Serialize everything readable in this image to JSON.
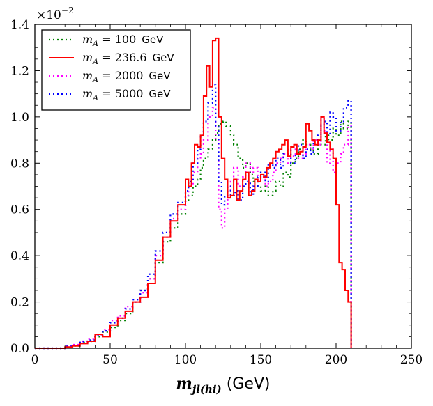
{
  "chart_data": {
    "type": "histogram-step",
    "title": "",
    "xlabel": "m_jl(hi) (GeV)",
    "xlabel_parts": {
      "math": "m",
      "sub": "jl(hi)",
      "unit": " (GeV)"
    },
    "ylabel": "",
    "y_multiplier": "×10",
    "y_multiplier_exp": "−2",
    "xlim": [
      0,
      250
    ],
    "ylim": [
      0.0,
      1.4
    ],
    "xticks": [
      0,
      50,
      100,
      150,
      200,
      250
    ],
    "xtick_labels": [
      "0",
      "50",
      "100",
      "150",
      "200",
      "250"
    ],
    "yticks": [
      0.0,
      0.2,
      0.4,
      0.6,
      0.8,
      1.0,
      1.2,
      1.4
    ],
    "ytick_labels": [
      "0.0",
      "0.2",
      "0.4",
      "0.6",
      "0.8",
      "1.0",
      "1.2",
      "1.4"
    ],
    "legend_position": "top-left",
    "series": [
      {
        "name": "m_A = 100 GeV",
        "legend_math": "m",
        "legend_sub": "A",
        "legend_value": " = 100",
        "legend_unit": "GeV",
        "color": "#008000",
        "style": "dotted",
        "x": [
          20,
          25,
          30,
          35,
          40,
          45,
          50,
          55,
          60,
          65,
          70,
          75,
          80,
          85,
          90,
          95,
          100,
          102,
          105,
          108,
          110,
          112,
          115,
          118,
          120,
          122,
          125,
          127,
          130,
          132,
          135,
          138,
          140,
          143,
          145,
          148,
          150,
          153,
          155,
          158,
          160,
          163,
          165,
          168,
          170,
          173,
          175,
          178,
          180,
          183,
          185,
          188,
          190,
          193,
          195,
          198,
          200,
          203,
          205,
          208,
          210
        ],
        "values": [
          0.005,
          0.01,
          0.025,
          0.03,
          0.05,
          0.07,
          0.09,
          0.12,
          0.15,
          0.2,
          0.25,
          0.3,
          0.37,
          0.46,
          0.52,
          0.58,
          0.64,
          0.66,
          0.7,
          0.73,
          0.78,
          0.82,
          0.86,
          0.9,
          0.93,
          0.97,
          0.98,
          0.96,
          0.92,
          0.88,
          0.82,
          0.78,
          0.8,
          0.75,
          0.72,
          0.7,
          0.68,
          0.7,
          0.66,
          0.68,
          0.72,
          0.7,
          0.76,
          0.74,
          0.8,
          0.82,
          0.86,
          0.9,
          0.88,
          0.86,
          0.84,
          0.9,
          0.88,
          0.92,
          0.9,
          0.95,
          0.92,
          0.98,
          0.95,
          0.98,
          0.0
        ]
      },
      {
        "name": "m_A = 236.6 GeV",
        "legend_math": "m",
        "legend_sub": "A",
        "legend_value": " = 236.6",
        "legend_unit": "GeV",
        "color": "#ff0000",
        "style": "solid",
        "x": [
          20,
          25,
          30,
          35,
          40,
          45,
          50,
          55,
          60,
          65,
          70,
          75,
          80,
          85,
          90,
          95,
          100,
          102,
          104,
          106,
          108,
          110,
          112,
          114,
          116,
          118,
          120,
          122,
          124,
          126,
          128,
          130,
          132,
          134,
          136,
          138,
          140,
          142,
          144,
          146,
          148,
          150,
          152,
          154,
          156,
          158,
          160,
          162,
          164,
          166,
          168,
          170,
          172,
          174,
          176,
          178,
          180,
          182,
          184,
          186,
          188,
          190,
          192,
          194,
          196,
          198,
          200,
          202,
          204,
          206,
          208,
          210
        ],
        "values": [
          0.005,
          0.01,
          0.02,
          0.03,
          0.06,
          0.05,
          0.1,
          0.13,
          0.16,
          0.2,
          0.22,
          0.28,
          0.38,
          0.48,
          0.55,
          0.62,
          0.73,
          0.7,
          0.8,
          0.88,
          0.87,
          0.92,
          1.09,
          1.22,
          1.13,
          1.33,
          1.34,
          1.0,
          0.82,
          0.73,
          0.65,
          0.66,
          0.73,
          0.64,
          0.68,
          0.73,
          0.76,
          0.66,
          0.68,
          0.73,
          0.72,
          0.75,
          0.74,
          0.78,
          0.8,
          0.82,
          0.85,
          0.86,
          0.88,
          0.9,
          0.83,
          0.87,
          0.88,
          0.84,
          0.85,
          0.87,
          0.97,
          0.94,
          0.9,
          0.88,
          0.9,
          1.0,
          0.93,
          0.89,
          0.86,
          0.82,
          0.62,
          0.37,
          0.34,
          0.25,
          0.2,
          0.0
        ]
      },
      {
        "name": "m_A = 2000 GeV",
        "legend_math": "m",
        "legend_sub": "A",
        "legend_value": " = 2000",
        "legend_unit": "GeV",
        "color": "#ff00ff",
        "style": "dotted",
        "x": [
          20,
          25,
          30,
          35,
          40,
          45,
          50,
          55,
          60,
          65,
          70,
          75,
          80,
          85,
          90,
          95,
          100,
          102,
          105,
          108,
          110,
          112,
          115,
          118,
          120,
          122,
          124,
          126,
          128,
          130,
          132,
          135,
          138,
          140,
          143,
          145,
          148,
          150,
          153,
          155,
          158,
          160,
          163,
          165,
          168,
          170,
          173,
          175,
          178,
          180,
          183,
          185,
          188,
          190,
          192,
          194,
          196,
          198,
          200,
          203,
          205,
          208,
          210
        ],
        "values": [
          0.01,
          0.015,
          0.03,
          0.04,
          0.06,
          0.08,
          0.12,
          0.14,
          0.18,
          0.2,
          0.24,
          0.3,
          0.4,
          0.48,
          0.56,
          0.6,
          0.66,
          0.7,
          0.76,
          0.82,
          0.84,
          0.9,
          1.0,
          1.04,
          0.9,
          0.6,
          0.52,
          0.6,
          0.68,
          0.72,
          0.78,
          0.7,
          0.74,
          0.8,
          0.76,
          0.78,
          0.72,
          0.74,
          0.7,
          0.72,
          0.76,
          0.8,
          0.82,
          0.84,
          0.8,
          0.83,
          0.86,
          0.82,
          0.84,
          0.88,
          0.86,
          0.9,
          0.88,
          1.0,
          0.94,
          0.8,
          0.86,
          0.76,
          0.8,
          0.84,
          0.88,
          0.96,
          0.0
        ]
      },
      {
        "name": "m_A = 5000 GeV",
        "legend_math": "m",
        "legend_sub": "A",
        "legend_value": " = 5000",
        "legend_unit": "GeV",
        "color": "#0000ff",
        "style": "dotted",
        "x": [
          20,
          25,
          30,
          35,
          40,
          45,
          50,
          55,
          60,
          65,
          70,
          75,
          80,
          85,
          90,
          95,
          100,
          102,
          105,
          108,
          110,
          112,
          115,
          118,
          120,
          122,
          124,
          126,
          128,
          130,
          133,
          135,
          138,
          140,
          143,
          145,
          148,
          150,
          153,
          155,
          158,
          160,
          163,
          165,
          168,
          170,
          173,
          175,
          178,
          180,
          183,
          185,
          188,
          190,
          192,
          194,
          196,
          198,
          200,
          203,
          205,
          208,
          210
        ],
        "values": [
          0.008,
          0.012,
          0.028,
          0.035,
          0.055,
          0.075,
          0.11,
          0.13,
          0.17,
          0.21,
          0.25,
          0.32,
          0.42,
          0.5,
          0.58,
          0.63,
          0.68,
          0.72,
          0.8,
          0.86,
          0.92,
          0.98,
          1.06,
          1.14,
          0.96,
          0.72,
          0.62,
          0.66,
          0.7,
          0.66,
          0.68,
          0.64,
          0.7,
          0.72,
          0.66,
          0.7,
          0.74,
          0.76,
          0.72,
          0.8,
          0.78,
          0.82,
          0.78,
          0.84,
          0.86,
          0.8,
          0.84,
          0.88,
          0.82,
          0.86,
          0.84,
          0.9,
          0.92,
          0.96,
          0.98,
          0.92,
          1.02,
          1.0,
          0.94,
          0.98,
          1.04,
          1.07,
          0.0
        ]
      }
    ]
  }
}
